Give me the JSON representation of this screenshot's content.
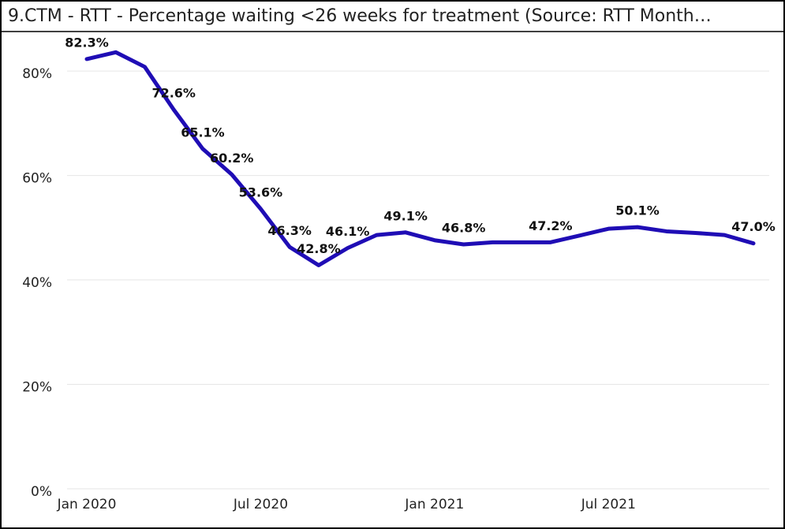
{
  "chart_data": {
    "type": "line",
    "title": "9.CTM - RTT - Percentage waiting <26 weeks for treatment (Source: RTT Month…",
    "categories": [
      "Jan 2020",
      null,
      null,
      null,
      null,
      null,
      "Jul 2020",
      null,
      null,
      null,
      null,
      null,
      "Jan 2021",
      null,
      null,
      null,
      null,
      null,
      "Jul 2021",
      null,
      null,
      null,
      null,
      null
    ],
    "series": [
      {
        "name": "Percentage waiting <26 weeks",
        "color": "#1f0db5",
        "values": [
          82.3,
          83.6,
          80.8,
          72.6,
          65.1,
          60.2,
          53.6,
          46.3,
          42.8,
          46.1,
          48.6,
          49.1,
          47.6,
          46.8,
          47.2,
          47.2,
          47.2,
          48.5,
          49.8,
          50.1,
          49.3,
          49.0,
          48.6,
          47.0
        ],
        "value_labels": [
          "82.3%",
          null,
          null,
          "72.6%",
          "65.1%",
          "60.2%",
          "53.6%",
          "46.3%",
          "42.8%",
          "46.1%",
          null,
          "49.1%",
          null,
          "46.8%",
          null,
          null,
          "47.2%",
          null,
          null,
          "50.1%",
          null,
          null,
          null,
          "47.0%"
        ]
      }
    ],
    "ylim": [
      0,
      85
    ],
    "yticks": [
      {
        "value": 0,
        "label": "0%"
      },
      {
        "value": 20,
        "label": "20%"
      },
      {
        "value": 40,
        "label": "40%"
      },
      {
        "value": 60,
        "label": "60%"
      },
      {
        "value": 80,
        "label": "80%"
      }
    ],
    "grid": true
  }
}
